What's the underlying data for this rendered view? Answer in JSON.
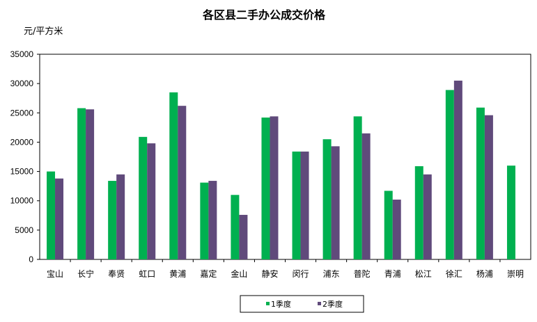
{
  "chart_data": {
    "type": "bar",
    "title": "各区县二手办公成交价格",
    "ylabel": "元/平方米",
    "xlabel": "",
    "ylim": [
      0,
      35000
    ],
    "yticks": [
      0,
      5000,
      10000,
      15000,
      20000,
      25000,
      30000,
      35000
    ],
    "grid": false,
    "legend_position": "bottom",
    "categories": [
      "宝山",
      "长宁",
      "奉贤",
      "虹口",
      "黄浦",
      "嘉定",
      "金山",
      "静安",
      "闵行",
      "浦东",
      "普陀",
      "青浦",
      "松江",
      "徐汇",
      "杨浦",
      "崇明"
    ],
    "series": [
      {
        "name": "1季度",
        "color": "#00b050",
        "values": [
          15000,
          25800,
          13400,
          20900,
          28500,
          13100,
          11000,
          24200,
          18400,
          20500,
          24400,
          11700,
          15900,
          28900,
          25900,
          16000
        ]
      },
      {
        "name": "2季度",
        "color": "#604a7b",
        "values": [
          13800,
          25600,
          14500,
          19800,
          26200,
          13400,
          7600,
          24400,
          18400,
          19300,
          21500,
          10200,
          14500,
          30500,
          24600,
          null
        ]
      }
    ]
  }
}
